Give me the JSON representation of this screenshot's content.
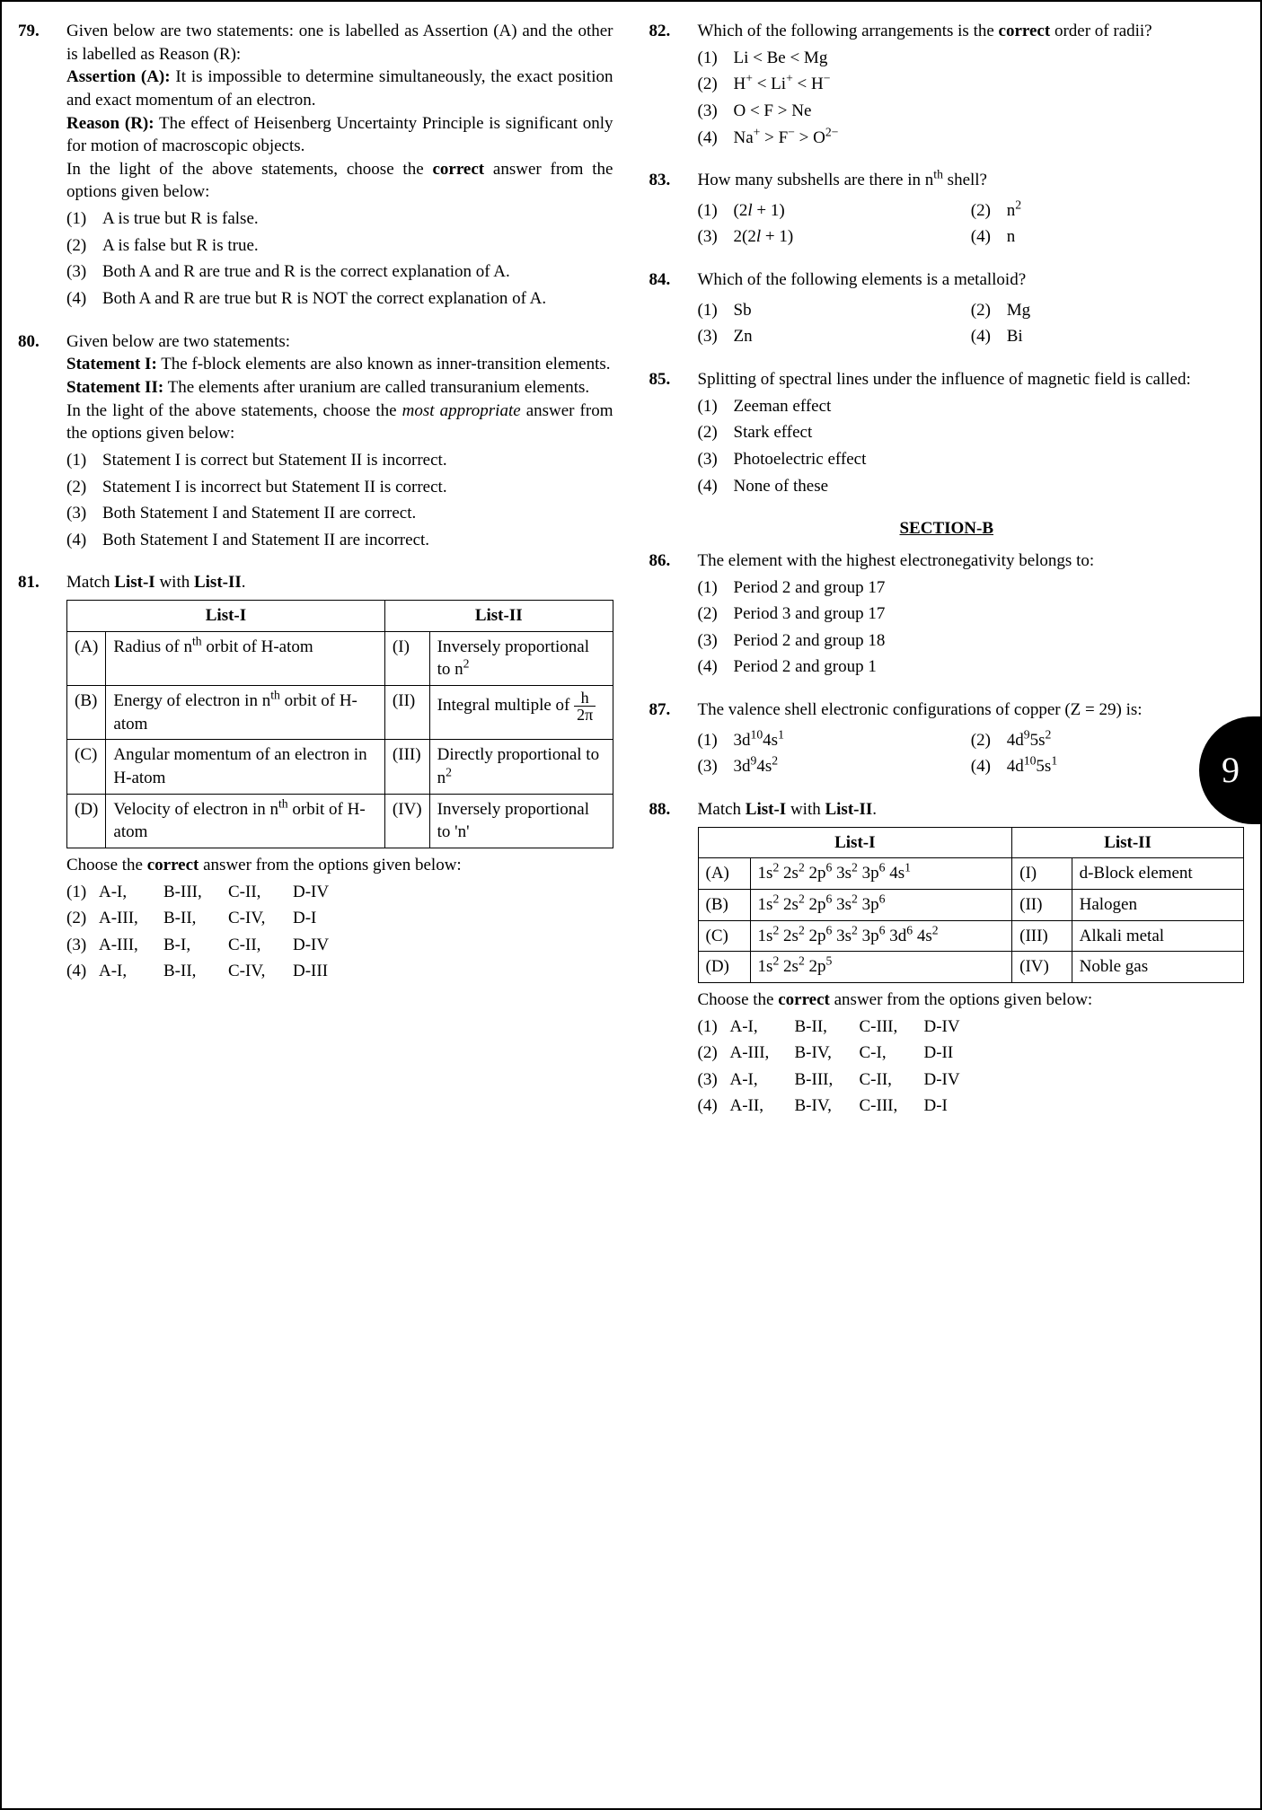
{
  "page_number": "9",
  "colors": {
    "text": "#000000",
    "background": "#ffffff",
    "tab_bg": "#000000",
    "tab_fg": "#ffffff",
    "border": "#000000"
  },
  "typography": {
    "family": "Times New Roman",
    "size_pt": 14,
    "line_height": 1.35
  },
  "section_b_header": "SECTION-B",
  "q79": {
    "num": "79.",
    "intro": "Given below are two statements: one is labelled as Assertion (A) and the other is labelled as Reason (R):",
    "a_label": "Assertion (A):",
    "a_text": " It is impossible to determine simultaneously, the exact position and exact momentum of an electron.",
    "r_label": "Reason (R):",
    "r_text": " The effect of Heisenberg Uncertainty Principle is significant only for motion of macroscopic objects.",
    "prompt_a": "In the light of the above statements, choose the ",
    "prompt_b": "correct",
    "prompt_c": " answer from the options given below:",
    "o1n": "(1)",
    "o1": "A is true but R is false.",
    "o2n": "(2)",
    "o2": "A is false but R is true.",
    "o3n": "(3)",
    "o3": "Both A and R are true and R is the correct explanation of A.",
    "o4n": "(4)",
    "o4": "Both A and R are true but R is NOT the correct explanation of A."
  },
  "q80": {
    "num": "80.",
    "intro": "Given below are two statements:",
    "s1_label": "Statement I:",
    "s1_text": " The f-block elements are also known as inner-transition elements.",
    "s2_label": "Statement II:",
    "s2_text": " The elements after uranium are called transuranium elements.",
    "prompt_a": "In the light of the above statements, choose the ",
    "prompt_b": "most appropriate",
    "prompt_c": " answer from the options given below:",
    "o1n": "(1)",
    "o1": "Statement I is correct but Statement II is incorrect.",
    "o2n": "(2)",
    "o2": "Statement I is incorrect but Statement II is correct.",
    "o3n": "(3)",
    "o3": "Both Statement I and Statement II are correct.",
    "o4n": "(4)",
    "o4": "Both Statement I and Statement II are incorrect."
  },
  "q81": {
    "num": "81.",
    "stem_a": "Match ",
    "stem_b": "List-I",
    "stem_c": " with ",
    "stem_d": "List-II",
    "stem_e": ".",
    "h1": "List-I",
    "h2": "List-II",
    "rA_k": "(A)",
    "rA_l": "Radius of n<sup>th</sup> orbit of H-atom",
    "rA_r": "(I)",
    "rA_m": "Inversely proportional to n<sup>2</sup>",
    "rB_k": "(B)",
    "rB_l": "Energy of electron in n<sup>th</sup> orbit of H-atom",
    "rB_r": "(II)",
    "rB_m_a": "Integral multiple of ",
    "rC_k": "(C)",
    "rC_l": "Angular momentum of an electron in H-atom",
    "rC_r": "(III)",
    "rC_m": "Directly proportional to n<sup>2</sup>",
    "rD_k": "(D)",
    "rD_l": "Velocity of electron in n<sup>th</sup> orbit of H-atom",
    "rD_r": "(IV)",
    "rD_m": "Inversely proportional to 'n'",
    "prompt_a": "Choose the ",
    "prompt_b": "correct",
    "prompt_c": " answer from the options given below:",
    "o1n": "(1)",
    "o1a": "A-I,",
    "o1b": "B-III,",
    "o1c": "C-II,",
    "o1d": "D-IV",
    "o2n": "(2)",
    "o2a": "A-III,",
    "o2b": "B-II,",
    "o2c": "C-IV,",
    "o2d": "D-I",
    "o3n": "(3)",
    "o3a": "A-III,",
    "o3b": "B-I,",
    "o3c": "C-II,",
    "o3d": "D-IV",
    "o4n": "(4)",
    "o4a": "A-I,",
    "o4b": "B-II,",
    "o4c": "C-IV,",
    "o4d": "D-III"
  },
  "q82": {
    "num": "82.",
    "stem_a": "Which of the following arrangements is the ",
    "stem_b": "correct",
    "stem_c": " order of radii?",
    "o1n": "(1)",
    "o1": "Li < Be < Mg",
    "o2n": "(2)",
    "o2": "H<sup>+</sup> < Li<sup>+</sup> < H<sup>−</sup>",
    "o3n": "(3)",
    "o3": "O < F > Ne",
    "o4n": "(4)",
    "o4": "Na<sup>+</sup> > F<sup>−</sup> > O<sup>2−</sup>"
  },
  "q83": {
    "num": "83.",
    "stem": "How many subshells are there in n<sup>th</sup> shell?",
    "o1n": "(1)",
    "o1": "(2<i>l</i> + 1)",
    "o2n": "(2)",
    "o2": "n<sup>2</sup>",
    "o3n": "(3)",
    "o3": "2(2<i>l</i> + 1)",
    "o4n": "(4)",
    "o4": "n"
  },
  "q84": {
    "num": "84.",
    "stem": "Which of the following elements is a metalloid?",
    "o1n": "(1)",
    "o1": "Sb",
    "o2n": "(2)",
    "o2": "Mg",
    "o3n": "(3)",
    "o3": "Zn",
    "o4n": "(4)",
    "o4": "Bi"
  },
  "q85": {
    "num": "85.",
    "stem": "Splitting of spectral lines under the influence of magnetic field is called:",
    "o1n": "(1)",
    "o1": "Zeeman effect",
    "o2n": "(2)",
    "o2": "Stark effect",
    "o3n": "(3)",
    "o3": "Photoelectric effect",
    "o4n": "(4)",
    "o4": "None of these"
  },
  "q86": {
    "num": "86.",
    "stem": "The element with the highest electronegativity belongs to:",
    "o1n": "(1)",
    "o1": "Period 2 and group 17",
    "o2n": "(2)",
    "o2": "Period 3 and group 17",
    "o3n": "(3)",
    "o3": "Period 2 and group 18",
    "o4n": "(4)",
    "o4": "Period 2 and group 1"
  },
  "q87": {
    "num": "87.",
    "stem": "The valence shell electronic configurations of copper (Z = 29) is:",
    "o1n": "(1)",
    "o1": "3d<sup>10</sup>4s<sup>1</sup>",
    "o2n": "(2)",
    "o2": "4d<sup>9</sup>5s<sup>2</sup>",
    "o3n": "(3)",
    "o3": "3d<sup>9</sup>4s<sup>2</sup>",
    "o4n": "(4)",
    "o4": "4d<sup>10</sup>5s<sup>1</sup>"
  },
  "q88": {
    "num": "88.",
    "stem_a": "Match ",
    "stem_b": "List-I",
    "stem_c": " with ",
    "stem_d": "List-II",
    "stem_e": ".",
    "h1": "List-I",
    "h2": "List-II",
    "rA_k": "(A)",
    "rA_l": "1s<sup>2</sup> 2s<sup>2</sup> 2p<sup>6</sup> 3s<sup>2</sup> 3p<sup>6</sup> 4s<sup>1</sup>",
    "rA_r": "(I)",
    "rA_m": "d-Block element",
    "rB_k": "(B)",
    "rB_l": "1s<sup>2</sup> 2s<sup>2</sup> 2p<sup>6</sup> 3s<sup>2</sup> 3p<sup>6</sup>",
    "rB_r": "(II)",
    "rB_m": "Halogen",
    "rC_k": "(C)",
    "rC_l": "1s<sup>2</sup> 2s<sup>2</sup> 2p<sup>6</sup> 3s<sup>2</sup> 3p<sup>6</sup> 3d<sup>6</sup> 4s<sup>2</sup>",
    "rC_r": "(III)",
    "rC_m": "Alkali metal",
    "rD_k": "(D)",
    "rD_l": "1s<sup>2</sup> 2s<sup>2</sup> 2p<sup>5</sup>",
    "rD_r": "(IV)",
    "rD_m": "Noble gas",
    "prompt_a": "Choose the ",
    "prompt_b": "correct",
    "prompt_c": " answer from the options given below:",
    "o1n": "(1)",
    "o1a": "A-I,",
    "o1b": "B-II,",
    "o1c": "C-III,",
    "o1d": "D-IV",
    "o2n": "(2)",
    "o2a": "A-III,",
    "o2b": "B-IV,",
    "o2c": "C-I,",
    "o2d": "D-II",
    "o3n": "(3)",
    "o3a": "A-I,",
    "o3b": "B-III,",
    "o3c": "C-II,",
    "o3d": "D-IV",
    "o4n": "(4)",
    "o4a": "A-II,",
    "o4b": "B-IV,",
    "o4c": "C-III,",
    "o4d": "D-I"
  }
}
